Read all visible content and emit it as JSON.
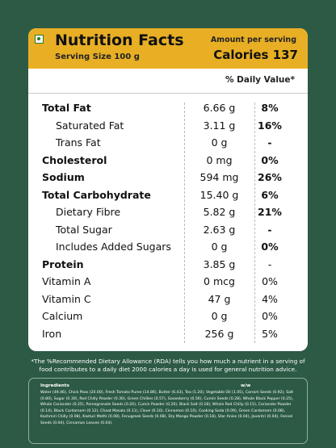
{
  "header": {
    "title": "Nutrition Facts",
    "serving_size": "Serving Size  100 g",
    "amount_label": "Amount per serving",
    "calories": "Calories 137"
  },
  "daily_value_heading": "% Daily Value*",
  "table": {
    "rows": [
      {
        "name": "Total Fat",
        "amount": "6.66 g",
        "dv": "8%",
        "bold": true,
        "indent": false
      },
      {
        "name": "Saturated Fat",
        "amount": "3.11 g",
        "dv": "16%",
        "bold": false,
        "indent": true
      },
      {
        "name": "Trans Fat",
        "amount": "0 g",
        "dv": "-",
        "bold": false,
        "indent": true
      },
      {
        "name": "Cholesterol",
        "amount": "0 mg",
        "dv": "0%",
        "bold": true,
        "indent": false
      },
      {
        "name": "Sodium",
        "amount": "594 mg",
        "dv": "26%",
        "bold": true,
        "indent": false
      },
      {
        "name": "Total Carbohydrate",
        "amount": "15.40 g",
        "dv": "6%",
        "bold": true,
        "indent": false
      },
      {
        "name": "Dietary Fibre",
        "amount": "5.82 g",
        "dv": "21%",
        "bold": false,
        "indent": true
      },
      {
        "name": "Total Sugar",
        "amount": "2.63 g",
        "dv": "-",
        "bold": false,
        "indent": true
      },
      {
        "name": "Includes Added Sugars",
        "amount": "0 g",
        "dv": "0%",
        "bold": false,
        "indent": true
      },
      {
        "name": "Protein",
        "amount": "3.85 g",
        "dv": "-",
        "bold": true,
        "indent": false
      },
      {
        "name": "Vitamin A",
        "amount": "0 mcg",
        "dv": "0%",
        "bold": false,
        "indent": false
      },
      {
        "name": "Vitamin C",
        "amount": "47 g",
        "dv": "4%",
        "bold": false,
        "indent": false
      },
      {
        "name": "Calcium",
        "amount": "0 g",
        "dv": "0%",
        "bold": false,
        "indent": false
      },
      {
        "name": "Iron",
        "amount": "256 g",
        "dv": "5%",
        "bold": false,
        "indent": false
      }
    ]
  },
  "footnote": "*The %Recommended Dietary Allowance (RDA) tells you how much a nutrient in a serving of food contributes to a daily diet 2000 calories a day is used for general nutrition advice.",
  "ingredients": {
    "heading": "Ingredients",
    "unit": "w/w",
    "text": "Water (49.46), Chick Peas (20.00), Fresh Tomato Puree (14.86), Butter (6.43), Tea (1.20), Vegetable Oil (1.05), Carrom Seeds (0.92), Salt (0.80), Sugar (0.30), Red Chilly Powder (0.30), Green Chillies (0.57), Gooseberry (0.56), Cumin Seeds (0.28), Whole Black Pepper (0.25), Whole Coriander (0.25), Pomegranate Seeds (0.20), Cumin Powder (0.20), Black Salt (0.18), Whole Red Chilly (0.15), Coriander Powder (0.14), Black Cardamom (0.12), Chaat Masala (0.11), Clove (0.10), Cinnamon (0.10), Cooking Soda (0.09), Green Cardamom (0.08), Kashmiri Chilly (0.08), Kasturi Methi (0.08), Fenugreek Seeds (0.08), Dry Mango Powder (0.18), Star Anise (0.04), Javentri (0.04), Fennel Seeds (0.04), Cinnamon Leaves (0.04)."
  }
}
